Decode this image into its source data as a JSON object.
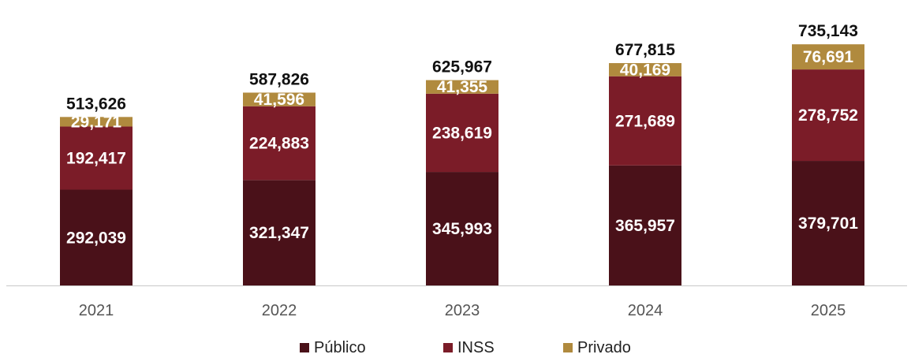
{
  "chart_data": {
    "type": "bar",
    "stacked": true,
    "categories": [
      "2021",
      "2022",
      "2023",
      "2024",
      "2025"
    ],
    "series": [
      {
        "name": "Público",
        "color": "#4a1119",
        "values": [
          292039,
          321347,
          345993,
          365957,
          379701
        ]
      },
      {
        "name": "INSS",
        "color": "#7b1c28",
        "values": [
          192417,
          224883,
          238619,
          271689,
          278752
        ]
      },
      {
        "name": "Privado",
        "color": "#b08a3e",
        "values": [
          29171,
          41596,
          41355,
          40169,
          76691
        ]
      }
    ],
    "totals": [
      513626,
      587826,
      625967,
      677815,
      735143
    ],
    "ylim": [
      0,
      750000
    ],
    "grid": false,
    "legend_position": "bottom"
  }
}
